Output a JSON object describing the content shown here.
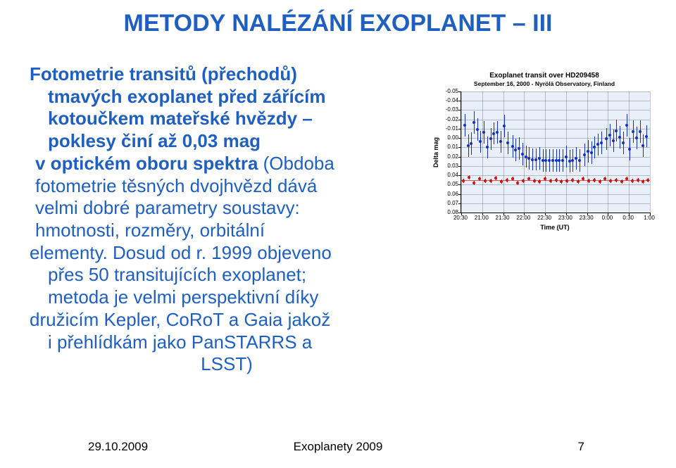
{
  "title": "METODY NALÉZÁNÍ EXOPLANET – III",
  "body": {
    "l1": "Fotometrie transitů (přechodů)",
    "l2": "tmavých exoplanet před zářícím",
    "l3": "kotoučkem mateřské hvězdy –",
    "l4": "poklesy činí až 0,03 mag",
    "l5a": "v optickém oboru spektra",
    "l5b": " (Obdoba",
    "l6": "fotometrie těsných dvojhvězd dává",
    "l7": "velmi dobré parametry soustavy:",
    "l8": "hmotnosti, rozměry, orbitální",
    "l9": "elementy. Dosud od r. 1999 objeveno",
    "l10": "přes 50 transitujících exoplanet;",
    "l11": "metoda je velmi perspektivní díky",
    "l12": "družicím Kepler, CoRoT a Gaia jakož",
    "l13": "i přehlídkám jako PanSTARRS a",
    "l14": "LSST)"
  },
  "footer": {
    "date": "29.10.2009",
    "title": "Exoplanety 2009",
    "page": "7"
  },
  "chart": {
    "title": "Exoplanet transit over HD209458",
    "subtitle": "September 16, 2000 - Nyrölä Observatory, Finland",
    "xlabel": "Time (UT)",
    "ylabel": "Delta mag",
    "ylim": [
      -0.05,
      0.08
    ],
    "ytick_step": 0.01,
    "yticks": [
      "-0.05",
      "-0.04",
      "-0.03",
      "-0.02",
      "-0.01",
      "0.00",
      "0.01",
      "0.02",
      "0.03",
      "0.04",
      "0.05",
      "0.06",
      "0.07",
      "0.08"
    ],
    "xlim": [
      20.5,
      25.0
    ],
    "xticks": [
      "20:30",
      "21:00",
      "21:30",
      "22:00",
      "22:30",
      "23:00",
      "23:30",
      "0:00",
      "0:30",
      "1:00"
    ],
    "plot_bg": "#e9f0fa",
    "grid_color": "rgba(0,0,0,0.22)",
    "blue_color": "#1030c0",
    "red_color": "#d01010",
    "red_flat_y": 0.045,
    "errorbar_half": 0.012,
    "blue_points": [
      [
        20.58,
        -0.014
      ],
      [
        20.66,
        0.008
      ],
      [
        20.73,
        0.006
      ],
      [
        20.8,
        -0.017
      ],
      [
        20.88,
        -0.009
      ],
      [
        20.96,
        0.004
      ],
      [
        21.04,
        -0.006
      ],
      [
        21.12,
        0.01
      ],
      [
        21.2,
        0.001
      ],
      [
        21.28,
        -0.005
      ],
      [
        21.36,
        -0.006
      ],
      [
        21.44,
        0.004
      ],
      [
        21.52,
        -0.013
      ],
      [
        21.6,
        0.005
      ],
      [
        21.72,
        0.009
      ],
      [
        21.8,
        0.013
      ],
      [
        21.88,
        0.011
      ],
      [
        21.96,
        0.017
      ],
      [
        22.04,
        0.02
      ],
      [
        22.12,
        0.022
      ],
      [
        22.2,
        0.023
      ],
      [
        22.28,
        0.023
      ],
      [
        22.36,
        0.022
      ],
      [
        22.44,
        0.024
      ],
      [
        22.52,
        0.024
      ],
      [
        22.6,
        0.024
      ],
      [
        22.68,
        0.024
      ],
      [
        22.76,
        0.024
      ],
      [
        22.84,
        0.024
      ],
      [
        22.92,
        0.024
      ],
      [
        23.0,
        0.02
      ],
      [
        23.08,
        0.025
      ],
      [
        23.16,
        0.024
      ],
      [
        23.24,
        0.022
      ],
      [
        23.32,
        0.024
      ],
      [
        23.44,
        0.018
      ],
      [
        23.52,
        0.014
      ],
      [
        23.6,
        0.016
      ],
      [
        23.68,
        0.01
      ],
      [
        23.76,
        0.007
      ],
      [
        23.84,
        0.005
      ],
      [
        23.96,
        0.001
      ],
      [
        24.04,
        -0.003
      ],
      [
        24.12,
        0.003
      ],
      [
        24.2,
        -0.008
      ],
      [
        24.28,
        -0.001
      ],
      [
        24.36,
        0.005
      ],
      [
        24.44,
        -0.014
      ],
      [
        24.52,
        0.012
      ],
      [
        24.6,
        -0.007
      ],
      [
        24.68,
        0.0
      ],
      [
        24.76,
        -0.007
      ],
      [
        24.84,
        0.008
      ],
      [
        24.92,
        -0.002
      ]
    ],
    "red_points": [
      [
        20.55,
        0.046
      ],
      [
        20.68,
        0.042
      ],
      [
        20.81,
        0.048
      ],
      [
        20.94,
        0.044
      ],
      [
        21.07,
        0.046
      ],
      [
        21.2,
        0.046
      ],
      [
        21.33,
        0.043
      ],
      [
        21.46,
        0.047
      ],
      [
        21.59,
        0.045
      ],
      [
        21.72,
        0.044
      ],
      [
        21.85,
        0.048
      ],
      [
        21.98,
        0.046
      ],
      [
        22.11,
        0.044
      ],
      [
        22.24,
        0.046
      ],
      [
        22.37,
        0.047
      ],
      [
        22.5,
        0.044
      ],
      [
        22.63,
        0.046
      ],
      [
        22.76,
        0.045
      ],
      [
        22.89,
        0.047
      ],
      [
        23.02,
        0.046
      ],
      [
        23.15,
        0.045
      ],
      [
        23.28,
        0.047
      ],
      [
        23.41,
        0.044
      ],
      [
        23.54,
        0.046
      ],
      [
        23.67,
        0.045
      ],
      [
        23.8,
        0.047
      ],
      [
        23.93,
        0.044
      ],
      [
        24.06,
        0.046
      ],
      [
        24.19,
        0.045
      ],
      [
        24.32,
        0.047
      ],
      [
        24.45,
        0.044
      ],
      [
        24.58,
        0.046
      ],
      [
        24.71,
        0.045
      ],
      [
        24.84,
        0.047
      ],
      [
        24.95,
        0.045
      ]
    ]
  }
}
